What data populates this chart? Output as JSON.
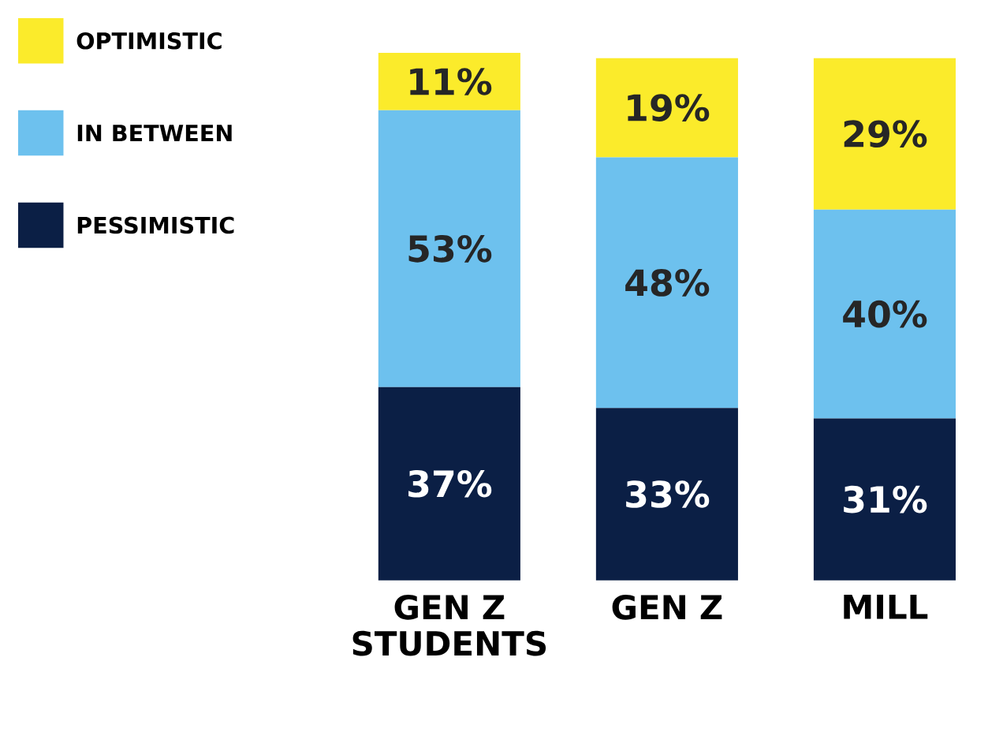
{
  "chart_data": {
    "type": "bar",
    "stacked": true,
    "categories": [
      "GEN Z STUDENTS",
      "GEN Z",
      "MILL"
    ],
    "series": [
      {
        "name": "PESSIMISTIC",
        "color": "#0b1f45",
        "values": [
          37,
          33,
          31
        ],
        "value_labels": [
          "37%",
          "33%",
          "31%"
        ]
      },
      {
        "name": "IN BETWEEN",
        "color": "#6dc1ee",
        "values": [
          53,
          48,
          40
        ],
        "value_labels": [
          "53%",
          "48%",
          "40%"
        ]
      },
      {
        "name": "OPTIMISTIC",
        "color": "#fbeb2b",
        "values": [
          11,
          19,
          29
        ],
        "value_labels": [
          "11%",
          "19%",
          "29%"
        ]
      }
    ],
    "legend": "left",
    "tick_labels": "x"
  }
}
